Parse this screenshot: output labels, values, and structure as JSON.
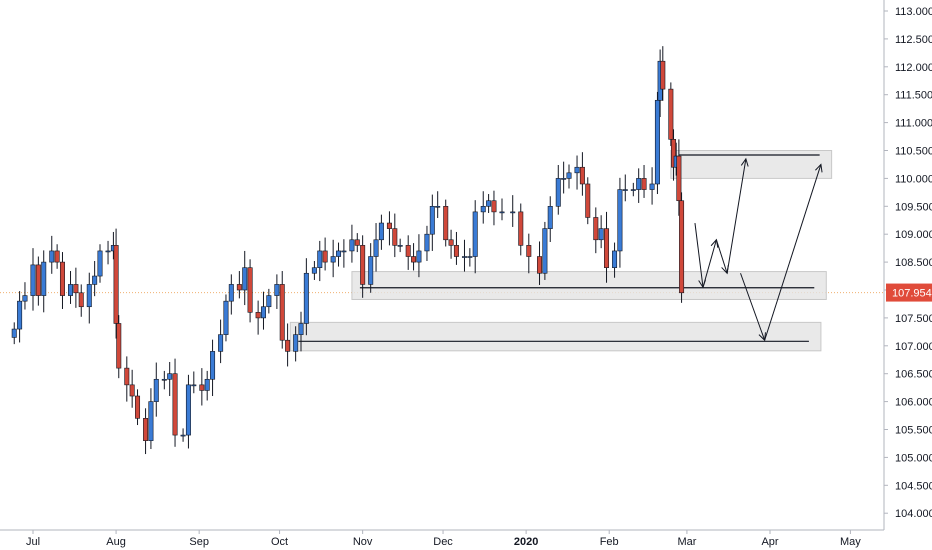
{
  "chart_data": {
    "type": "candlestick",
    "instrument_note": "",
    "ylim": [
      103.6,
      113.2
    ],
    "y_ticks": [
      "113.000",
      "112.500",
      "112.000",
      "111.500",
      "111.000",
      "110.500",
      "110.000",
      "109.500",
      "109.000",
      "108.500",
      "108.000",
      "107.500",
      "107.000",
      "106.500",
      "106.000",
      "105.500",
      "105.000",
      "104.500",
      "104.000"
    ],
    "y_tick_values": [
      113.0,
      112.5,
      112.0,
      111.5,
      111.0,
      110.5,
      110.0,
      109.5,
      109.0,
      108.5,
      108.0,
      107.5,
      107.0,
      106.5,
      106.0,
      105.5,
      105.0,
      104.5,
      104.0
    ],
    "x_range": [
      "2019-06-21",
      "2020-05-08"
    ],
    "x_ticks": [
      {
        "label": "Jul",
        "date": "2019-07-01",
        "bold": false
      },
      {
        "label": "Aug",
        "date": "2019-08-01",
        "bold": false
      },
      {
        "label": "Sep",
        "date": "2019-09-01",
        "bold": false
      },
      {
        "label": "Oct",
        "date": "2019-10-01",
        "bold": false
      },
      {
        "label": "Nov",
        "date": "2019-11-01",
        "bold": false
      },
      {
        "label": "Dec",
        "date": "2019-12-01",
        "bold": false
      },
      {
        "label": "2020",
        "date": "2020-01-01",
        "bold": true
      },
      {
        "label": "Feb",
        "date": "2020-02-01",
        "bold": false
      },
      {
        "label": "Mar",
        "date": "2020-03-01",
        "bold": false
      },
      {
        "label": "Apr",
        "date": "2020-04-01",
        "bold": false
      },
      {
        "label": "May",
        "date": "2020-05-01",
        "bold": false
      }
    ],
    "last_price": {
      "value": 107.954,
      "label": "107.954",
      "color": "#e04b3a"
    },
    "colors": {
      "up": "#3a7bd5",
      "down": "#d0483a",
      "wick": "#131722",
      "zone_fill": "#e4e4e4",
      "zone_border": "#c8c8c8",
      "level_line": "#131722",
      "arrow": "#131722",
      "price_line": "#f0b070"
    },
    "closes": [
      {
        "date": "2019-06-24",
        "close": 107.3
      },
      {
        "date": "2019-06-26",
        "close": 107.8
      },
      {
        "date": "2019-06-28",
        "close": 107.9
      },
      {
        "date": "2019-07-01",
        "close": 108.45
      },
      {
        "date": "2019-07-03",
        "close": 107.9
      },
      {
        "date": "2019-07-05",
        "close": 108.5
      },
      {
        "date": "2019-07-08",
        "close": 108.7
      },
      {
        "date": "2019-07-10",
        "close": 108.5
      },
      {
        "date": "2019-07-12",
        "close": 107.9
      },
      {
        "date": "2019-07-15",
        "close": 108.1
      },
      {
        "date": "2019-07-17",
        "close": 107.95
      },
      {
        "date": "2019-07-19",
        "close": 107.7
      },
      {
        "date": "2019-07-22",
        "close": 108.1
      },
      {
        "date": "2019-07-24",
        "close": 108.25
      },
      {
        "date": "2019-07-26",
        "close": 108.7
      },
      {
        "date": "2019-07-29",
        "close": 108.7
      },
      {
        "date": "2019-07-31",
        "close": 108.8
      },
      {
        "date": "2019-08-01",
        "close": 107.4
      },
      {
        "date": "2019-08-02",
        "close": 106.6
      },
      {
        "date": "2019-08-05",
        "close": 106.3
      },
      {
        "date": "2019-08-07",
        "close": 106.1
      },
      {
        "date": "2019-08-09",
        "close": 105.7
      },
      {
        "date": "2019-08-12",
        "close": 105.3
      },
      {
        "date": "2019-08-14",
        "close": 106.0
      },
      {
        "date": "2019-08-16",
        "close": 106.4
      },
      {
        "date": "2019-08-19",
        "close": 106.4
      },
      {
        "date": "2019-08-21",
        "close": 106.5
      },
      {
        "date": "2019-08-23",
        "close": 105.4
      },
      {
        "date": "2019-08-26",
        "close": 105.4
      },
      {
        "date": "2019-08-28",
        "close": 106.3
      },
      {
        "date": "2019-08-30",
        "close": 106.3
      },
      {
        "date": "2019-09-02",
        "close": 106.2
      },
      {
        "date": "2019-09-04",
        "close": 106.4
      },
      {
        "date": "2019-09-06",
        "close": 106.9
      },
      {
        "date": "2019-09-09",
        "close": 107.2
      },
      {
        "date": "2019-09-11",
        "close": 107.8
      },
      {
        "date": "2019-09-13",
        "close": 108.1
      },
      {
        "date": "2019-09-16",
        "close": 108.0
      },
      {
        "date": "2019-09-18",
        "close": 108.4
      },
      {
        "date": "2019-09-20",
        "close": 107.6
      },
      {
        "date": "2019-09-23",
        "close": 107.5
      },
      {
        "date": "2019-09-25",
        "close": 107.7
      },
      {
        "date": "2019-09-27",
        "close": 107.9
      },
      {
        "date": "2019-09-30",
        "close": 108.1
      },
      {
        "date": "2019-10-02",
        "close": 107.1
      },
      {
        "date": "2019-10-04",
        "close": 106.9
      },
      {
        "date": "2019-10-07",
        "close": 107.2
      },
      {
        "date": "2019-10-09",
        "close": 107.4
      },
      {
        "date": "2019-10-11",
        "close": 108.3
      },
      {
        "date": "2019-10-14",
        "close": 108.4
      },
      {
        "date": "2019-10-16",
        "close": 108.7
      },
      {
        "date": "2019-10-18",
        "close": 108.5
      },
      {
        "date": "2019-10-21",
        "close": 108.6
      },
      {
        "date": "2019-10-23",
        "close": 108.7
      },
      {
        "date": "2019-10-25",
        "close": 108.7
      },
      {
        "date": "2019-10-28",
        "close": 108.9
      },
      {
        "date": "2019-10-30",
        "close": 108.8
      },
      {
        "date": "2019-11-01",
        "close": 108.1
      },
      {
        "date": "2019-11-04",
        "close": 108.6
      },
      {
        "date": "2019-11-06",
        "close": 108.9
      },
      {
        "date": "2019-11-08",
        "close": 109.2
      },
      {
        "date": "2019-11-11",
        "close": 109.1
      },
      {
        "date": "2019-11-13",
        "close": 108.8
      },
      {
        "date": "2019-11-15",
        "close": 108.8
      },
      {
        "date": "2019-11-18",
        "close": 108.6
      },
      {
        "date": "2019-11-20",
        "close": 108.5
      },
      {
        "date": "2019-11-22",
        "close": 108.7
      },
      {
        "date": "2019-11-25",
        "close": 109.0
      },
      {
        "date": "2019-11-27",
        "close": 109.5
      },
      {
        "date": "2019-11-29",
        "close": 109.5
      },
      {
        "date": "2019-12-02",
        "close": 108.9
      },
      {
        "date": "2019-12-04",
        "close": 108.8
      },
      {
        "date": "2019-12-06",
        "close": 108.6
      },
      {
        "date": "2019-12-09",
        "close": 108.6
      },
      {
        "date": "2019-12-11",
        "close": 108.6
      },
      {
        "date": "2019-12-13",
        "close": 109.4
      },
      {
        "date": "2019-12-16",
        "close": 109.5
      },
      {
        "date": "2019-12-18",
        "close": 109.6
      },
      {
        "date": "2019-12-20",
        "close": 109.4
      },
      {
        "date": "2019-12-23",
        "close": 109.4
      },
      {
        "date": "2019-12-27",
        "close": 109.4
      },
      {
        "date": "2019-12-30",
        "close": 108.8
      },
      {
        "date": "2020-01-02",
        "close": 108.6
      },
      {
        "date": "2020-01-06",
        "close": 108.3
      },
      {
        "date": "2020-01-08",
        "close": 109.1
      },
      {
        "date": "2020-01-10",
        "close": 109.5
      },
      {
        "date": "2020-01-13",
        "close": 110.0
      },
      {
        "date": "2020-01-15",
        "close": 110.0
      },
      {
        "date": "2020-01-17",
        "close": 110.1
      },
      {
        "date": "2020-01-20",
        "close": 110.2
      },
      {
        "date": "2020-01-22",
        "close": 109.9
      },
      {
        "date": "2020-01-24",
        "close": 109.3
      },
      {
        "date": "2020-01-27",
        "close": 108.9
      },
      {
        "date": "2020-01-29",
        "close": 109.1
      },
      {
        "date": "2020-01-31",
        "close": 108.4
      },
      {
        "date": "2020-02-03",
        "close": 108.7
      },
      {
        "date": "2020-02-05",
        "close": 109.8
      },
      {
        "date": "2020-02-07",
        "close": 109.8
      },
      {
        "date": "2020-02-10",
        "close": 109.8
      },
      {
        "date": "2020-02-12",
        "close": 110.0
      },
      {
        "date": "2020-02-14",
        "close": 109.8
      },
      {
        "date": "2020-02-17",
        "close": 109.9
      },
      {
        "date": "2020-02-19",
        "close": 111.4
      },
      {
        "date": "2020-02-20",
        "close": 112.1
      },
      {
        "date": "2020-02-21",
        "close": 111.6
      },
      {
        "date": "2020-02-24",
        "close": 110.7
      },
      {
        "date": "2020-02-25",
        "close": 110.2
      },
      {
        "date": "2020-02-26",
        "close": 110.4
      },
      {
        "date": "2020-02-27",
        "close": 109.6
      },
      {
        "date": "2020-02-28",
        "close": 107.95
      }
    ],
    "zones": [
      {
        "name": "resistance-zone",
        "start": "2020-02-24",
        "end": "2020-04-24",
        "high": 110.5,
        "low": 110.0,
        "level": 110.42
      },
      {
        "name": "support-zone",
        "start": "2019-10-28",
        "end": "2020-04-22",
        "high": 108.33,
        "low": 107.83,
        "level": 108.04
      },
      {
        "name": "lower-support-zone",
        "start": "2019-10-05",
        "end": "2020-04-20",
        "high": 107.42,
        "low": 106.91,
        "level": 107.08
      }
    ],
    "arrow_path_1": [
      {
        "date": "2020-03-04",
        "price": 109.2
      },
      {
        "date": "2020-03-07",
        "price": 108.05
      },
      {
        "date": "2020-03-12",
        "price": 108.9
      },
      {
        "date": "2020-03-16",
        "price": 108.3
      },
      {
        "date": "2020-03-23",
        "price": 110.35
      }
    ],
    "arrow_path_2": [
      {
        "date": "2020-03-21",
        "price": 108.3
      },
      {
        "date": "2020-03-30",
        "price": 107.1
      },
      {
        "date": "2020-04-20",
        "price": 110.25
      }
    ]
  }
}
